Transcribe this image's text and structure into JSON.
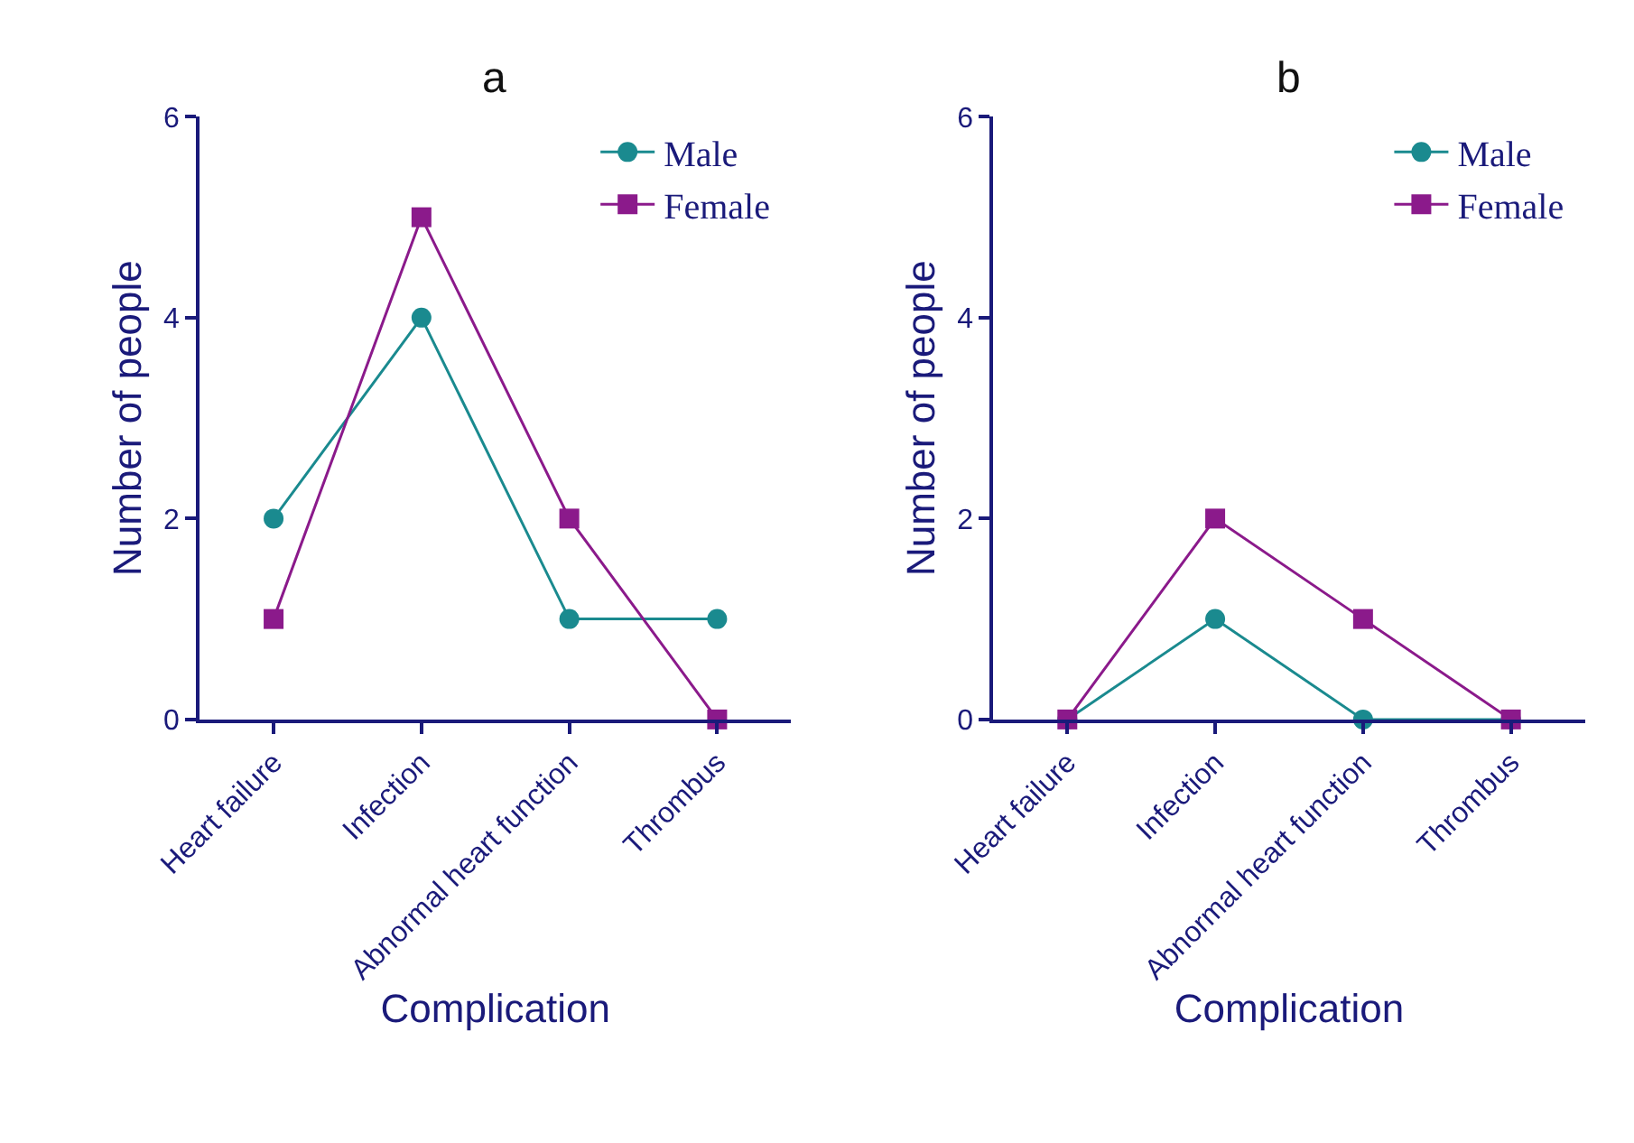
{
  "chart_data": [
    {
      "type": "line",
      "title": "a",
      "xlabel": "Complication",
      "ylabel": "Number of people",
      "categories": [
        "Heart failure",
        "Infection",
        "Abnormal heart function",
        "Thrombus"
      ],
      "ylim": [
        0,
        6
      ],
      "yticks": [
        0,
        2,
        4,
        6
      ],
      "legend": "top right",
      "line_style": "solid",
      "series": [
        {
          "name": "Male",
          "color": "#1a8a8f",
          "marker": "circle",
          "values": [
            2,
            4,
            1,
            1
          ]
        },
        {
          "name": "Female",
          "color": "#8b1a8b",
          "marker": "square",
          "values": [
            1,
            5,
            2,
            0
          ]
        }
      ]
    },
    {
      "type": "line",
      "title": "b",
      "xlabel": "Complication",
      "ylabel": "Number of people",
      "categories": [
        "Heart failure",
        "Infection",
        "Abnormal heart function",
        "Thrombus"
      ],
      "ylim": [
        0,
        6
      ],
      "yticks": [
        0,
        2,
        4,
        6
      ],
      "legend": "top right",
      "line_style": "solid",
      "series": [
        {
          "name": "Male",
          "color": "#1a8a8f",
          "marker": "circle",
          "values": [
            0,
            1,
            0,
            0
          ]
        },
        {
          "name": "Female",
          "color": "#8b1a8b",
          "marker": "square",
          "values": [
            0,
            2,
            1,
            0
          ]
        }
      ]
    }
  ]
}
